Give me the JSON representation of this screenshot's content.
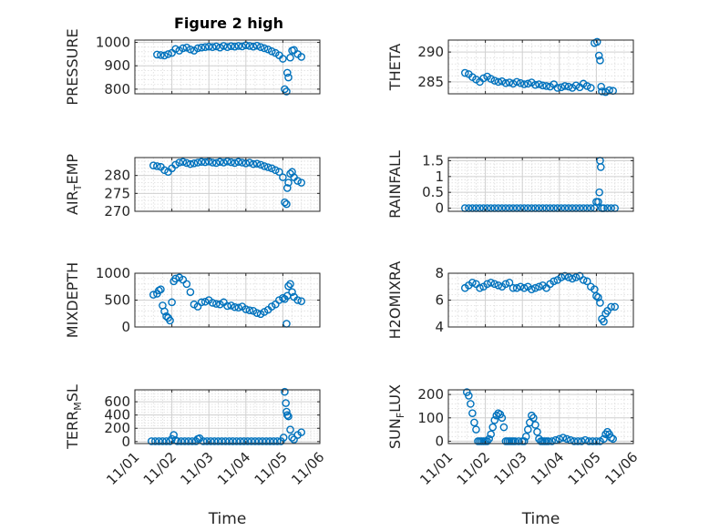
{
  "figure_title": "Figure 2 high",
  "chart_data": [
    {
      "type": "scatter",
      "ylabel": "PRESSURE",
      "ylabel_sub": "",
      "ylabel_tail": "",
      "xlabel": "",
      "ylim": [
        780,
        1010
      ],
      "yticks": [
        800,
        900,
        1000
      ],
      "ytick_labels": [
        "800",
        "900",
        "1000"
      ],
      "show_xticklabels": false,
      "x": [
        1.6,
        1.7,
        1.8,
        1.9,
        2.0,
        2.1,
        2.2,
        2.3,
        2.4,
        2.5,
        2.6,
        2.7,
        2.8,
        2.9,
        3.0,
        3.1,
        3.2,
        3.3,
        3.4,
        3.5,
        3.6,
        3.7,
        3.8,
        3.9,
        4.0,
        4.1,
        4.2,
        4.3,
        4.4,
        4.5,
        4.6,
        4.7,
        4.8,
        4.9,
        5.0,
        5.05,
        5.1,
        5.12,
        5.15,
        5.2,
        5.25,
        5.3,
        5.4,
        5.5
      ],
      "y": [
        948,
        946,
        944,
        950,
        955,
        972,
        965,
        975,
        978,
        970,
        965,
        975,
        978,
        980,
        982,
        980,
        983,
        978,
        985,
        980,
        984,
        982,
        985,
        983,
        988,
        985,
        982,
        986,
        980,
        975,
        970,
        962,
        955,
        945,
        930,
        800,
        790,
        870,
        850,
        935,
        965,
        968,
        950,
        938
      ]
    },
    {
      "type": "scatter",
      "ylabel": "THETA",
      "ylabel_sub": "",
      "ylabel_tail": "",
      "xlabel": "",
      "ylim": [
        283,
        292
      ],
      "yticks": [
        285,
        290
      ],
      "ytick_labels": [
        "285",
        "290"
      ],
      "show_xticklabels": false,
      "x": [
        1.45,
        1.55,
        1.65,
        1.75,
        1.85,
        1.95,
        2.05,
        2.15,
        2.25,
        2.35,
        2.45,
        2.55,
        2.65,
        2.75,
        2.85,
        2.95,
        3.05,
        3.15,
        3.25,
        3.35,
        3.45,
        3.55,
        3.65,
        3.75,
        3.85,
        3.95,
        4.05,
        4.15,
        4.25,
        4.35,
        4.45,
        4.55,
        4.65,
        4.75,
        4.85,
        4.95,
        5.02,
        5.07,
        5.1,
        5.13,
        5.15,
        5.25,
        5.35,
        5.45
      ],
      "y": [
        286.5,
        286.3,
        285.8,
        285.4,
        285.0,
        285.6,
        285.9,
        285.5,
        285.2,
        285.0,
        285.1,
        284.8,
        284.9,
        284.7,
        285.0,
        284.8,
        284.6,
        284.7,
        284.9,
        284.5,
        284.6,
        284.4,
        284.3,
        284.2,
        284.6,
        284.0,
        284.1,
        284.3,
        284.2,
        284.0,
        284.4,
        284.1,
        284.7,
        284.3,
        284.0,
        291.5,
        291.7,
        289.4,
        288.6,
        284.2,
        283.4,
        283.3,
        283.6,
        283.5
      ]
    },
    {
      "type": "scatter",
      "ylabel": "AIR",
      "ylabel_sub": "T",
      "ylabel_tail": "EMP",
      "xlabel": "",
      "ylim": [
        270,
        285
      ],
      "yticks": [
        270,
        275,
        280
      ],
      "ytick_labels": [
        "270",
        "275",
        "280"
      ],
      "show_xticklabels": false,
      "x": [
        1.5,
        1.6,
        1.7,
        1.8,
        1.9,
        2.0,
        2.1,
        2.2,
        2.3,
        2.4,
        2.5,
        2.6,
        2.7,
        2.8,
        2.9,
        3.0,
        3.1,
        3.2,
        3.3,
        3.4,
        3.5,
        3.6,
        3.7,
        3.8,
        3.9,
        4.0,
        4.1,
        4.2,
        4.3,
        4.4,
        4.5,
        4.6,
        4.7,
        4.8,
        4.9,
        5.0,
        5.05,
        5.1,
        5.12,
        5.15,
        5.2,
        5.25,
        5.3,
        5.4,
        5.5
      ],
      "y": [
        282.8,
        282.6,
        282.4,
        281.5,
        281.0,
        282.0,
        283.0,
        283.6,
        283.8,
        283.5,
        283.2,
        283.4,
        283.6,
        283.8,
        283.7,
        283.9,
        283.6,
        283.5,
        283.8,
        283.6,
        283.9,
        283.7,
        283.5,
        283.8,
        283.6,
        283.4,
        283.6,
        283.2,
        283.3,
        283.0,
        282.6,
        282.3,
        282.0,
        281.5,
        281.0,
        279.5,
        272.5,
        272.0,
        276.5,
        278.0,
        280.5,
        281.0,
        279.5,
        278.5,
        278.0
      ]
    },
    {
      "type": "scatter",
      "ylabel": "RAINFALL",
      "ylabel_sub": "",
      "ylabel_tail": "",
      "xlabel": "",
      "ylim": [
        -0.1,
        1.6
      ],
      "yticks": [
        0,
        0.5,
        1,
        1.5
      ],
      "ytick_labels": [
        "0",
        "0.5",
        "1",
        "1.5"
      ],
      "show_xticklabels": false,
      "x": [
        1.45,
        1.55,
        1.65,
        1.75,
        1.85,
        1.95,
        2.05,
        2.15,
        2.25,
        2.35,
        2.45,
        2.55,
        2.65,
        2.75,
        2.85,
        2.95,
        3.05,
        3.15,
        3.25,
        3.35,
        3.45,
        3.55,
        3.65,
        3.75,
        3.85,
        3.95,
        4.05,
        4.15,
        4.25,
        4.35,
        4.45,
        4.55,
        4.65,
        4.75,
        4.85,
        4.95,
        5.0,
        5.05,
        5.08,
        5.1,
        5.12,
        5.15,
        5.2,
        5.3,
        5.4,
        5.5
      ],
      "y": [
        0,
        0,
        0,
        0,
        0,
        0,
        0,
        0,
        0,
        0,
        0,
        0,
        0,
        0,
        0,
        0,
        0,
        0,
        0,
        0,
        0,
        0,
        0,
        0,
        0,
        0,
        0,
        0,
        0,
        0,
        0,
        0,
        0,
        0,
        0,
        0,
        0.2,
        0.2,
        0.5,
        1.5,
        1.3,
        0,
        0,
        0,
        0,
        0
      ]
    },
    {
      "type": "scatter",
      "ylabel": "MIXDEPTH",
      "ylabel_sub": "",
      "ylabel_tail": "",
      "xlabel": "",
      "ylim": [
        0,
        1000
      ],
      "yticks": [
        0,
        500,
        1000
      ],
      "ytick_labels": [
        "0",
        "500",
        "1000"
      ],
      "show_xticklabels": false,
      "x": [
        1.5,
        1.6,
        1.65,
        1.7,
        1.75,
        1.8,
        1.85,
        1.9,
        1.95,
        2.0,
        2.05,
        2.1,
        2.2,
        2.3,
        2.4,
        2.5,
        2.6,
        2.7,
        2.8,
        2.9,
        3.0,
        3.1,
        3.2,
        3.3,
        3.4,
        3.5,
        3.6,
        3.7,
        3.8,
        3.9,
        4.0,
        4.1,
        4.2,
        4.3,
        4.4,
        4.5,
        4.6,
        4.7,
        4.8,
        4.9,
        5.0,
        5.05,
        5.1,
        5.12,
        5.15,
        5.2,
        5.25,
        5.3,
        5.4,
        5.5
      ],
      "y": [
        600,
        620,
        680,
        700,
        400,
        290,
        200,
        170,
        120,
        460,
        850,
        900,
        920,
        880,
        800,
        650,
        420,
        380,
        460,
        470,
        500,
        450,
        430,
        420,
        460,
        390,
        400,
        370,
        360,
        380,
        330,
        310,
        300,
        260,
        240,
        280,
        320,
        380,
        420,
        500,
        540,
        520,
        60,
        580,
        760,
        800,
        650,
        560,
        500,
        480
      ]
    },
    {
      "type": "scatter",
      "ylabel": "H2OMIXRA",
      "ylabel_sub": "",
      "ylabel_tail": "",
      "xlabel": "",
      "ylim": [
        4,
        8
      ],
      "yticks": [
        4,
        6,
        8
      ],
      "ytick_labels": [
        "4",
        "6",
        "8"
      ],
      "show_xticklabels": false,
      "x": [
        1.45,
        1.55,
        1.65,
        1.75,
        1.85,
        1.95,
        2.05,
        2.15,
        2.25,
        2.35,
        2.45,
        2.55,
        2.65,
        2.75,
        2.85,
        2.95,
        3.05,
        3.15,
        3.25,
        3.35,
        3.45,
        3.55,
        3.65,
        3.75,
        3.85,
        3.95,
        4.05,
        4.15,
        4.25,
        4.35,
        4.45,
        4.55,
        4.65,
        4.75,
        4.85,
        4.95,
        5.0,
        5.05,
        5.1,
        5.15,
        5.2,
        5.25,
        5.3,
        5.4,
        5.5
      ],
      "y": [
        6.9,
        7.1,
        7.3,
        7.2,
        6.9,
        7.0,
        7.2,
        7.3,
        7.2,
        7.1,
        7.0,
        7.2,
        7.3,
        6.9,
        6.9,
        7.0,
        6.9,
        7.0,
        6.8,
        6.9,
        7.0,
        7.1,
        6.9,
        7.2,
        7.4,
        7.5,
        7.7,
        7.8,
        7.7,
        7.6,
        7.7,
        7.8,
        7.5,
        7.4,
        7.0,
        6.8,
        6.3,
        6.2,
        5.8,
        4.6,
        4.4,
        5.0,
        5.2,
        5.5,
        5.5
      ]
    },
    {
      "type": "scatter",
      "ylabel": "TERR",
      "ylabel_sub": "M",
      "ylabel_tail": "SL",
      "xlabel": "Time",
      "ylim": [
        -30,
        780
      ],
      "yticks": [
        0,
        200,
        400,
        600
      ],
      "ytick_labels": [
        "0",
        "200",
        "400",
        "600"
      ],
      "show_xticklabels": true,
      "xticks": [
        1,
        2,
        3,
        4,
        5,
        6
      ],
      "xtick_labels": [
        "11/01",
        "11/02",
        "11/03",
        "11/04",
        "11/05",
        "11/06"
      ],
      "x": [
        1.45,
        1.55,
        1.65,
        1.75,
        1.85,
        1.95,
        2.0,
        2.05,
        2.1,
        2.15,
        2.25,
        2.35,
        2.45,
        2.55,
        2.65,
        2.7,
        2.75,
        2.85,
        2.95,
        3.05,
        3.15,
        3.25,
        3.35,
        3.45,
        3.55,
        3.65,
        3.75,
        3.85,
        3.95,
        4.05,
        4.15,
        4.25,
        4.35,
        4.45,
        4.55,
        4.65,
        4.75,
        4.85,
        4.95,
        5.02,
        5.05,
        5.08,
        5.1,
        5.12,
        5.15,
        5.2,
        5.25,
        5.3,
        5.4,
        5.5
      ],
      "y": [
        5,
        5,
        5,
        5,
        5,
        5,
        40,
        100,
        20,
        5,
        5,
        5,
        5,
        5,
        5,
        40,
        50,
        5,
        5,
        5,
        5,
        5,
        5,
        5,
        5,
        5,
        5,
        5,
        5,
        5,
        5,
        5,
        5,
        5,
        5,
        5,
        5,
        5,
        5,
        60,
        750,
        580,
        450,
        400,
        380,
        180,
        60,
        30,
        100,
        140
      ]
    },
    {
      "type": "scatter",
      "ylabel": "SUN",
      "ylabel_sub": "F",
      "ylabel_tail": "LUX",
      "xlabel": "Time",
      "ylim": [
        -10,
        220
      ],
      "yticks": [
        0,
        100,
        200
      ],
      "ytick_labels": [
        "0",
        "100",
        "200"
      ],
      "show_xticklabels": true,
      "xticks": [
        1,
        2,
        3,
        4,
        5,
        6
      ],
      "xtick_labels": [
        "11/01",
        "11/02",
        "11/03",
        "11/04",
        "11/05",
        "11/06"
      ],
      "x": [
        1.5,
        1.55,
        1.6,
        1.65,
        1.7,
        1.75,
        1.8,
        1.85,
        1.9,
        1.95,
        2.0,
        2.05,
        2.1,
        2.15,
        2.2,
        2.25,
        2.3,
        2.35,
        2.4,
        2.45,
        2.5,
        2.55,
        2.6,
        2.65,
        2.7,
        2.75,
        2.8,
        2.9,
        3.0,
        3.05,
        3.1,
        3.15,
        3.2,
        3.25,
        3.3,
        3.35,
        3.4,
        3.45,
        3.5,
        3.55,
        3.6,
        3.65,
        3.7,
        3.8,
        3.9,
        4.0,
        4.1,
        4.2,
        4.3,
        4.4,
        4.5,
        4.6,
        4.7,
        4.8,
        4.9,
        5.0,
        5.1,
        5.2,
        5.25,
        5.3,
        5.35,
        5.4,
        5.45
      ],
      "y": [
        210,
        195,
        160,
        120,
        80,
        50,
        0,
        0,
        0,
        0,
        0,
        0,
        10,
        30,
        60,
        90,
        110,
        120,
        115,
        100,
        60,
        0,
        0,
        0,
        0,
        0,
        0,
        0,
        0,
        0,
        20,
        50,
        80,
        110,
        100,
        70,
        40,
        10,
        0,
        0,
        0,
        0,
        0,
        0,
        5,
        10,
        15,
        10,
        5,
        0,
        0,
        0,
        5,
        0,
        0,
        0,
        0,
        10,
        30,
        40,
        30,
        15,
        10
      ]
    }
  ],
  "colors": {
    "marker": "#0072BD",
    "axis": "#262626",
    "grid": "#dcdcdc",
    "background": "#ffffff"
  }
}
